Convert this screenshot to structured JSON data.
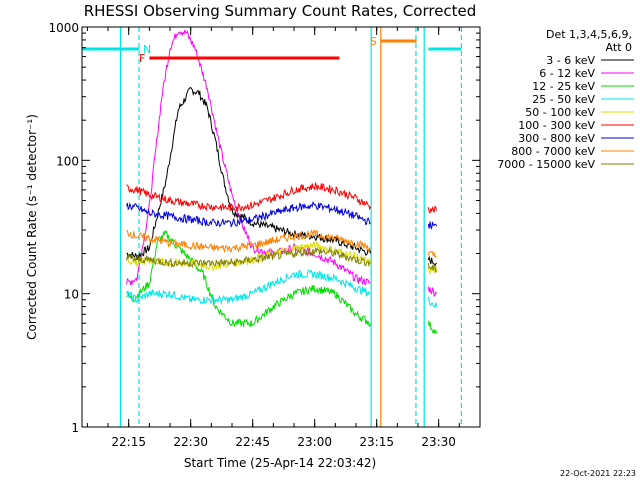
{
  "chart_data": {
    "type": "line",
    "title": "RHESSI Observing Summary Count Rates, Corrected",
    "xlabel": "Start Time (25-Apr-14 22:03:42)",
    "ylabel": "Corrected Count Rate (s⁻¹ detector⁻¹)",
    "yscale": "log",
    "ylim": [
      1,
      1000
    ],
    "xlim": [
      "22:03:42",
      "23:40:00"
    ],
    "x_ticks": [
      "22:15",
      "22:30",
      "22:45",
      "23:00",
      "23:15",
      "23:30"
    ],
    "y_ticks": [
      "1",
      "10",
      "100",
      "1000"
    ],
    "timestamp": "22-Oct-2021 22:23",
    "legend": {
      "placement": "right",
      "header": [
        "Det 1,3,4,5,6,9,",
        "Att 0"
      ]
    },
    "flags": [
      {
        "label": "N",
        "color": "#00e5e5",
        "segments": [
          [
            "22:03:42",
            "22:17:30"
          ],
          [
            "23:27:30",
            "23:35:30"
          ]
        ]
      },
      {
        "label": "F",
        "color": "#ff0000",
        "segments": [
          [
            "22:20:00",
            "23:06:00"
          ]
        ]
      },
      {
        "label": "S",
        "color": "#ff8000",
        "segments": [
          [
            "23:16:00",
            "23:24:40"
          ]
        ]
      }
    ],
    "vertical_markers": [
      {
        "time": "22:17:30",
        "color": "#00e5e5",
        "style": "dashed"
      },
      {
        "time": "22:13:00",
        "color": "#00e5e5",
        "style": "solid"
      },
      {
        "time": "23:13:40",
        "color": "#00e5e5",
        "style": "solid"
      },
      {
        "time": "23:16:00",
        "color": "#ff8000",
        "style": "solid"
      },
      {
        "time": "23:24:30",
        "color": "#00e5e5",
        "style": "dashed"
      },
      {
        "time": "23:26:30",
        "color": "#00e5e5",
        "style": "solid"
      },
      {
        "time": "23:35:30",
        "color": "#00e5e5",
        "style": "dashed"
      }
    ],
    "series": [
      {
        "name": "3 - 6 keV",
        "color": "#000000",
        "segments": [
          [
            [
              "22:14:30",
              20
            ],
            [
              "22:17:00",
              19
            ],
            [
              "22:20:00",
              22
            ],
            [
              "22:24:00",
              70
            ],
            [
              "22:27:00",
              240
            ],
            [
              "22:30:00",
              340
            ],
            [
              "22:32:00",
              320
            ],
            [
              "22:34:00",
              250
            ],
            [
              "22:36:00",
              140
            ],
            [
              "22:38:00",
              70
            ],
            [
              "22:40:00",
              42
            ],
            [
              "22:45:00",
              34
            ],
            [
              "22:50:00",
              31
            ],
            [
              "22:55:00",
              28
            ],
            [
              "23:00:00",
              27
            ],
            [
              "23:05:00",
              25
            ],
            [
              "23:10:00",
              22
            ],
            [
              "23:13:30",
              20
            ]
          ],
          [
            [
              "23:27:30",
              18
            ],
            [
              "23:29:30",
              17
            ]
          ]
        ]
      },
      {
        "name": "6 - 12 keV",
        "color": "#ff00ff",
        "segments": [
          [
            [
              "22:14:30",
              12
            ],
            [
              "22:17:00",
              13
            ],
            [
              "22:20:00",
              45
            ],
            [
              "22:23:00",
              300
            ],
            [
              "22:25:00",
              700
            ],
            [
              "22:27:00",
              950
            ],
            [
              "22:29:00",
              900
            ],
            [
              "22:31:00",
              700
            ],
            [
              "22:34:00",
              350
            ],
            [
              "22:37:00",
              130
            ],
            [
              "22:40:00",
              55
            ],
            [
              "22:43:00",
              30
            ],
            [
              "22:45:00",
              22
            ],
            [
              "22:50:00",
              20
            ],
            [
              "22:55:00",
              22
            ],
            [
              "23:00:00",
              20
            ],
            [
              "23:05:00",
              17
            ],
            [
              "23:10:00",
              13
            ],
            [
              "23:13:30",
              12
            ]
          ],
          [
            [
              "23:27:30",
              11
            ],
            [
              "23:29:30",
              10
            ]
          ]
        ]
      },
      {
        "name": "12 - 25 keV",
        "color": "#00dd00",
        "segments": [
          [
            [
              "22:14:30",
              10
            ],
            [
              "22:16:00",
              9
            ],
            [
              "22:20:00",
              12
            ],
            [
              "22:22:00",
              25
            ],
            [
              "22:24:00",
              28
            ],
            [
              "22:27:00",
              22
            ],
            [
              "22:30:00",
              18
            ],
            [
              "22:33:00",
              14
            ],
            [
              "22:36:00",
              8
            ],
            [
              "22:40:00",
              6
            ],
            [
              "22:45:00",
              6
            ],
            [
              "22:50:00",
              8
            ],
            [
              "22:55:00",
              10
            ],
            [
              "23:00:00",
              11
            ],
            [
              "23:05:00",
              10
            ],
            [
              "23:10:00",
              7
            ],
            [
              "23:13:30",
              6
            ]
          ],
          [
            [
              "23:27:30",
              6
            ],
            [
              "23:29:30",
              5
            ]
          ]
        ]
      },
      {
        "name": "25 - 50 keV",
        "color": "#00e5e5",
        "segments": [
          [
            [
              "22:14:30",
              10
            ],
            [
              "22:17:00",
              9
            ],
            [
              "22:20:00",
              10
            ],
            [
              "22:25:00",
              10
            ],
            [
              "22:30:00",
              9
            ],
            [
              "22:35:00",
              9
            ],
            [
              "22:40:00",
              9
            ],
            [
              "22:45:00",
              10
            ],
            [
              "22:50:00",
              12
            ],
            [
              "22:55:00",
              14
            ],
            [
              "23:00:00",
              14
            ],
            [
              "23:05:00",
              13
            ],
            [
              "23:10:00",
              11
            ],
            [
              "23:13:30",
              10
            ]
          ],
          [
            [
              "23:27:30",
              9
            ],
            [
              "23:29:30",
              8
            ]
          ]
        ]
      },
      {
        "name": "50 - 100 keV",
        "color": "#dddd00",
        "segments": [
          [
            [
              "22:14:30",
              18
            ],
            [
              "22:17:00",
              17
            ],
            [
              "22:20:00",
              18
            ],
            [
              "22:25:00",
              17
            ],
            [
              "22:30:00",
              17
            ],
            [
              "22:35:00",
              16
            ],
            [
              "22:40:00",
              17
            ],
            [
              "22:45:00",
              18
            ],
            [
              "22:50:00",
              20
            ],
            [
              "22:55:00",
              22
            ],
            [
              "23:00:00",
              23
            ],
            [
              "23:05:00",
              21
            ],
            [
              "23:10:00",
              19
            ],
            [
              "23:13:30",
              17
            ]
          ],
          [
            [
              "23:27:30",
              15
            ],
            [
              "23:29:30",
              15
            ]
          ]
        ]
      },
      {
        "name": "100 - 300 keV",
        "color": "#ff0000",
        "segments": [
          [
            [
              "22:14:30",
              62
            ],
            [
              "22:17:00",
              60
            ],
            [
              "22:20:00",
              55
            ],
            [
              "22:25:00",
              50
            ],
            [
              "22:30:00",
              47
            ],
            [
              "22:35:00",
              45
            ],
            [
              "22:40:00",
              44
            ],
            [
              "22:45:00",
              46
            ],
            [
              "22:50:00",
              52
            ],
            [
              "22:55:00",
              60
            ],
            [
              "23:00:00",
              64
            ],
            [
              "23:05:00",
              60
            ],
            [
              "23:10:00",
              52
            ],
            [
              "23:13:30",
              45
            ]
          ],
          [
            [
              "23:27:30",
              43
            ],
            [
              "23:29:30",
              42
            ]
          ]
        ]
      },
      {
        "name": "300 - 800 keV",
        "color": "#0000dd",
        "segments": [
          [
            [
              "22:14:30",
              46
            ],
            [
              "22:17:00",
              44
            ],
            [
              "22:20:00",
              40
            ],
            [
              "22:25:00",
              38
            ],
            [
              "22:30:00",
              36
            ],
            [
              "22:35:00",
              34
            ],
            [
              "22:40:00",
              34
            ],
            [
              "22:45:00",
              36
            ],
            [
              "22:50:00",
              40
            ],
            [
              "22:55:00",
              44
            ],
            [
              "23:00:00",
              46
            ],
            [
              "23:05:00",
              43
            ],
            [
              "23:10:00",
              38
            ],
            [
              "23:13:30",
              34
            ]
          ],
          [
            [
              "23:27:30",
              33
            ],
            [
              "23:29:30",
              32
            ]
          ]
        ]
      },
      {
        "name": "800 - 7000 keV",
        "color": "#ff8000",
        "segments": [
          [
            [
              "22:14:30",
              29
            ],
            [
              "22:17:00",
              27
            ],
            [
              "22:20:00",
              26
            ],
            [
              "22:25:00",
              24
            ],
            [
              "22:30:00",
              23
            ],
            [
              "22:35:00",
              22
            ],
            [
              "22:40:00",
              22
            ],
            [
              "22:45:00",
              23
            ],
            [
              "22:50:00",
              25
            ],
            [
              "22:55:00",
              27
            ],
            [
              "23:00:00",
              28
            ],
            [
              "23:05:00",
              26
            ],
            [
              "23:10:00",
              24
            ],
            [
              "23:13:30",
              22
            ]
          ],
          [
            [
              "23:27:30",
              20
            ],
            [
              "23:29:30",
              19
            ]
          ]
        ]
      },
      {
        "name": "7000 - 15000 keV",
        "color": "#808000",
        "segments": [
          [
            [
              "22:14:30",
              19
            ],
            [
              "22:17:00",
              18
            ],
            [
              "22:20:00",
              18
            ],
            [
              "22:25:00",
              17
            ],
            [
              "22:30:00",
              17
            ],
            [
              "22:35:00",
              17
            ],
            [
              "22:40:00",
              17
            ],
            [
              "22:45:00",
              18
            ],
            [
              "22:50:00",
              19
            ],
            [
              "22:55:00",
              20
            ],
            [
              "23:00:00",
              21
            ],
            [
              "23:05:00",
              20
            ],
            [
              "23:10:00",
              18
            ],
            [
              "23:13:30",
              17
            ]
          ],
          [
            [
              "23:27:30",
              16
            ],
            [
              "23:29:30",
              15
            ]
          ]
        ]
      }
    ]
  }
}
